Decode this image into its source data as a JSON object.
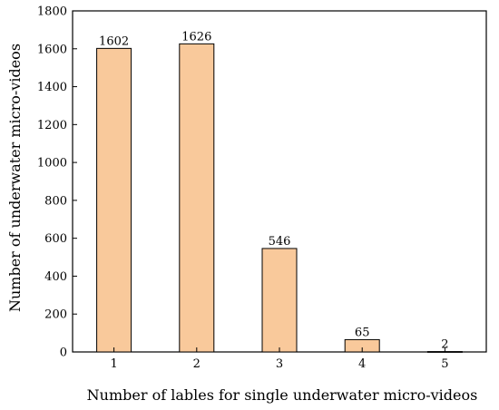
{
  "chart_data": {
    "type": "bar",
    "categories": [
      "1",
      "2",
      "3",
      "4",
      "5"
    ],
    "values": [
      1602,
      1626,
      546,
      65,
      2
    ],
    "data_labels": [
      "1602",
      "1626",
      "546",
      "65",
      "2"
    ],
    "title": "",
    "xlabel": "Number of lables for single underwater micro-videos",
    "ylabel": "Number of  underwater micro-videos",
    "ylim": [
      0,
      1800
    ],
    "yticks": [
      0,
      200,
      400,
      600,
      800,
      1000,
      1200,
      1400,
      1600,
      1800
    ],
    "grid": false,
    "legend": "none",
    "colors": {
      "bar_fill": "#f9c99b",
      "bar_stroke": "#000000"
    }
  }
}
